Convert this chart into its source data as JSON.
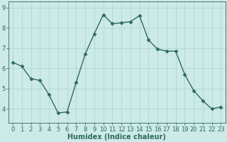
{
  "x": [
    0,
    1,
    2,
    3,
    4,
    5,
    6,
    7,
    8,
    9,
    10,
    11,
    12,
    13,
    14,
    15,
    16,
    17,
    18,
    19,
    20,
    21,
    22,
    23
  ],
  "y": [
    6.3,
    6.1,
    5.5,
    5.4,
    4.7,
    3.8,
    3.85,
    5.3,
    6.7,
    7.7,
    8.65,
    8.2,
    8.25,
    8.3,
    8.6,
    7.4,
    6.95,
    6.85,
    6.85,
    5.7,
    4.9,
    4.4,
    4.0,
    4.1
  ],
  "line_color": "#2e6b5e",
  "marker": "D",
  "markersize": 2.5,
  "linewidth": 1.0,
  "bg_color": "#cceae8",
  "grid_color": "#aed6d2",
  "axis_color": "#2e6b5e",
  "xlabel": "Humidex (Indice chaleur)",
  "xlabel_fontsize": 7,
  "tick_fontsize": 6,
  "yticks": [
    4,
    5,
    6,
    7,
    8,
    9
  ],
  "xticks": [
    0,
    1,
    2,
    3,
    4,
    5,
    6,
    7,
    8,
    9,
    10,
    11,
    12,
    13,
    14,
    15,
    16,
    17,
    18,
    19,
    20,
    21,
    22,
    23
  ],
  "ylim": [
    3.3,
    9.3
  ],
  "xlim": [
    -0.5,
    23.5
  ]
}
